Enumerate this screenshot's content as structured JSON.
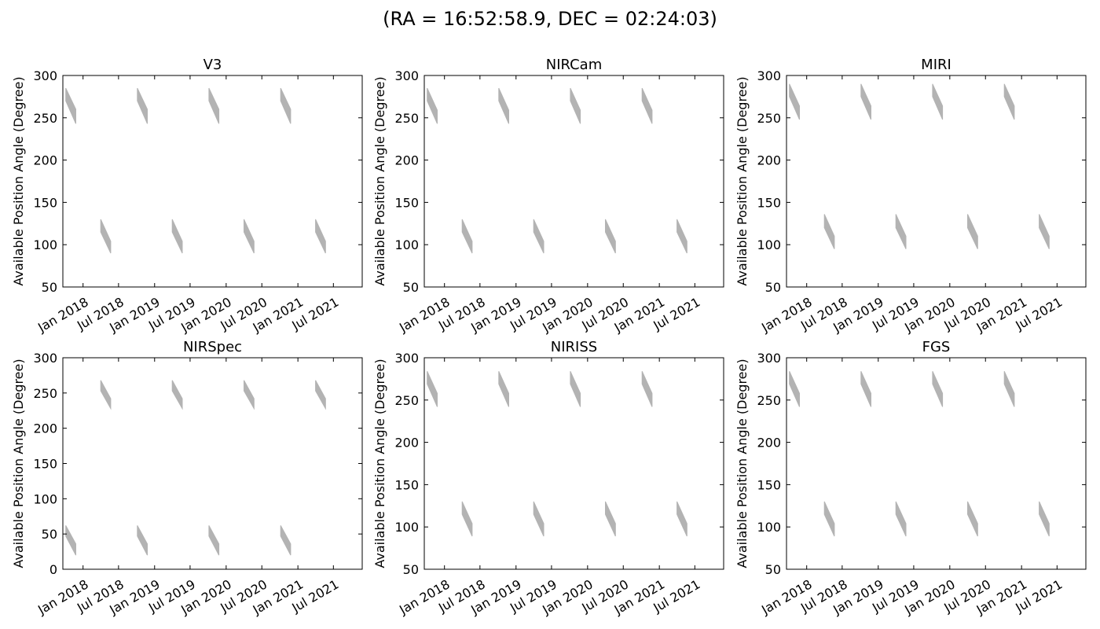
{
  "figure": {
    "title": "(RA = 16:52:58.9, DEC = 02:24:03)",
    "window_color": "#b3b3b3"
  },
  "chart_data": [
    {
      "type": "area",
      "title": "V3",
      "ylabel": "Available Position Angle (Degree)",
      "xlabel": "",
      "xlim": [
        "2017-09-20",
        "2021-11-25"
      ],
      "ylim": [
        50,
        300
      ],
      "yticks": [
        50,
        100,
        150,
        200,
        250,
        300
      ],
      "xticks": [
        "2018-01-01",
        "2018-07-01",
        "2019-01-01",
        "2019-07-01",
        "2020-01-01",
        "2020-07-01",
        "2021-01-01",
        "2021-07-01"
      ],
      "xticklabels": [
        "Jan 2018",
        "Jul 2018",
        "Jan 2019",
        "Jul 2019",
        "Jan 2020",
        "Jul 2020",
        "Jan 2021",
        "Jul 2021"
      ],
      "grid": false,
      "series": [
        {
          "windows": [
            {
              "start": "2017-10-05",
              "end": "2017-11-25",
              "upper_start": 285,
              "upper_end": 260,
              "lower_start": 270,
              "lower_end": 243
            },
            {
              "start": "2018-10-05",
              "end": "2018-11-25",
              "upper_start": 285,
              "upper_end": 260,
              "lower_start": 270,
              "lower_end": 243
            },
            {
              "start": "2019-10-05",
              "end": "2019-11-25",
              "upper_start": 285,
              "upper_end": 260,
              "lower_start": 270,
              "lower_end": 243
            },
            {
              "start": "2020-10-05",
              "end": "2020-11-25",
              "upper_start": 285,
              "upper_end": 260,
              "lower_start": 270,
              "lower_end": 243
            },
            {
              "start": "2018-04-01",
              "end": "2018-05-22",
              "upper_start": 130,
              "upper_end": 104,
              "lower_start": 115,
              "lower_end": 90
            },
            {
              "start": "2019-04-01",
              "end": "2019-05-22",
              "upper_start": 130,
              "upper_end": 104,
              "lower_start": 115,
              "lower_end": 90
            },
            {
              "start": "2020-04-01",
              "end": "2020-05-22",
              "upper_start": 130,
              "upper_end": 104,
              "lower_start": 115,
              "lower_end": 90
            },
            {
              "start": "2021-04-01",
              "end": "2021-05-22",
              "upper_start": 130,
              "upper_end": 104,
              "lower_start": 115,
              "lower_end": 90
            }
          ]
        }
      ]
    },
    {
      "type": "area",
      "title": "NIRCam",
      "ylabel": "Available Position Angle (Degree)",
      "xlabel": "",
      "xlim": [
        "2017-09-20",
        "2021-11-25"
      ],
      "ylim": [
        50,
        300
      ],
      "yticks": [
        50,
        100,
        150,
        200,
        250,
        300
      ],
      "xticks": [
        "2018-01-01",
        "2018-07-01",
        "2019-01-01",
        "2019-07-01",
        "2020-01-01",
        "2020-07-01",
        "2021-01-01",
        "2021-07-01"
      ],
      "xticklabels": [
        "Jan 2018",
        "Jul 2018",
        "Jan 2019",
        "Jul 2019",
        "Jan 2020",
        "Jul 2020",
        "Jan 2021",
        "Jul 2021"
      ],
      "grid": false,
      "series": [
        {
          "windows": [
            {
              "start": "2017-10-05",
              "end": "2017-11-25",
              "upper_start": 285,
              "upper_end": 259,
              "lower_start": 270,
              "lower_end": 243
            },
            {
              "start": "2018-10-05",
              "end": "2018-11-25",
              "upper_start": 285,
              "upper_end": 259,
              "lower_start": 270,
              "lower_end": 243
            },
            {
              "start": "2019-10-05",
              "end": "2019-11-25",
              "upper_start": 285,
              "upper_end": 259,
              "lower_start": 270,
              "lower_end": 243
            },
            {
              "start": "2020-10-05",
              "end": "2020-11-25",
              "upper_start": 285,
              "upper_end": 259,
              "lower_start": 270,
              "lower_end": 243
            },
            {
              "start": "2018-04-01",
              "end": "2018-05-22",
              "upper_start": 130,
              "upper_end": 104,
              "lower_start": 115,
              "lower_end": 90
            },
            {
              "start": "2019-04-01",
              "end": "2019-05-22",
              "upper_start": 130,
              "upper_end": 104,
              "lower_start": 115,
              "lower_end": 90
            },
            {
              "start": "2020-04-01",
              "end": "2020-05-22",
              "upper_start": 130,
              "upper_end": 104,
              "lower_start": 115,
              "lower_end": 90
            },
            {
              "start": "2021-04-01",
              "end": "2021-05-22",
              "upper_start": 130,
              "upper_end": 104,
              "lower_start": 115,
              "lower_end": 90
            }
          ]
        }
      ]
    },
    {
      "type": "area",
      "title": "MIRI",
      "ylabel": "Available Position Angle (Degree)",
      "xlabel": "",
      "xlim": [
        "2017-09-20",
        "2021-11-25"
      ],
      "ylim": [
        50,
        300
      ],
      "yticks": [
        50,
        100,
        150,
        200,
        250,
        300
      ],
      "xticks": [
        "2018-01-01",
        "2018-07-01",
        "2019-01-01",
        "2019-07-01",
        "2020-01-01",
        "2020-07-01",
        "2021-01-01",
        "2021-07-01"
      ],
      "xticklabels": [
        "Jan 2018",
        "Jul 2018",
        "Jan 2019",
        "Jul 2019",
        "Jan 2020",
        "Jul 2020",
        "Jan 2021",
        "Jul 2021"
      ],
      "grid": false,
      "series": [
        {
          "windows": [
            {
              "start": "2017-10-05",
              "end": "2017-11-25",
              "upper_start": 290,
              "upper_end": 264,
              "lower_start": 275,
              "lower_end": 248
            },
            {
              "start": "2018-10-05",
              "end": "2018-11-25",
              "upper_start": 290,
              "upper_end": 264,
              "lower_start": 275,
              "lower_end": 248
            },
            {
              "start": "2019-10-05",
              "end": "2019-11-25",
              "upper_start": 290,
              "upper_end": 264,
              "lower_start": 275,
              "lower_end": 248
            },
            {
              "start": "2020-10-05",
              "end": "2020-11-25",
              "upper_start": 290,
              "upper_end": 264,
              "lower_start": 275,
              "lower_end": 248
            },
            {
              "start": "2018-04-01",
              "end": "2018-05-22",
              "upper_start": 136,
              "upper_end": 110,
              "lower_start": 120,
              "lower_end": 95
            },
            {
              "start": "2019-04-01",
              "end": "2019-05-22",
              "upper_start": 136,
              "upper_end": 110,
              "lower_start": 120,
              "lower_end": 95
            },
            {
              "start": "2020-04-01",
              "end": "2020-05-22",
              "upper_start": 136,
              "upper_end": 110,
              "lower_start": 120,
              "lower_end": 95
            },
            {
              "start": "2021-04-01",
              "end": "2021-05-22",
              "upper_start": 136,
              "upper_end": 110,
              "lower_start": 120,
              "lower_end": 95
            }
          ]
        }
      ]
    },
    {
      "type": "area",
      "title": "NIRSpec",
      "ylabel": "Available Position Angle (Degree)",
      "xlabel": "",
      "xlim": [
        "2017-09-20",
        "2021-11-25"
      ],
      "ylim": [
        0,
        300
      ],
      "yticks": [
        0,
        50,
        100,
        150,
        200,
        250,
        300
      ],
      "xticks": [
        "2018-01-01",
        "2018-07-01",
        "2019-01-01",
        "2019-07-01",
        "2020-01-01",
        "2020-07-01",
        "2021-01-01",
        "2021-07-01"
      ],
      "xticklabels": [
        "Jan 2018",
        "Jul 2018",
        "Jan 2019",
        "Jul 2019",
        "Jan 2020",
        "Jul 2020",
        "Jan 2021",
        "Jul 2021"
      ],
      "grid": false,
      "series": [
        {
          "windows": [
            {
              "start": "2017-10-05",
              "end": "2017-11-25",
              "upper_start": 62,
              "upper_end": 36,
              "lower_start": 47,
              "lower_end": 20
            },
            {
              "start": "2018-10-05",
              "end": "2018-11-25",
              "upper_start": 62,
              "upper_end": 36,
              "lower_start": 47,
              "lower_end": 20
            },
            {
              "start": "2019-10-05",
              "end": "2019-11-25",
              "upper_start": 62,
              "upper_end": 36,
              "lower_start": 47,
              "lower_end": 20
            },
            {
              "start": "2020-10-05",
              "end": "2020-11-25",
              "upper_start": 62,
              "upper_end": 36,
              "lower_start": 47,
              "lower_end": 20
            },
            {
              "start": "2018-04-01",
              "end": "2018-05-22",
              "upper_start": 268,
              "upper_end": 242,
              "lower_start": 253,
              "lower_end": 228
            },
            {
              "start": "2019-04-01",
              "end": "2019-05-22",
              "upper_start": 268,
              "upper_end": 242,
              "lower_start": 253,
              "lower_end": 228
            },
            {
              "start": "2020-04-01",
              "end": "2020-05-22",
              "upper_start": 268,
              "upper_end": 242,
              "lower_start": 253,
              "lower_end": 228
            },
            {
              "start": "2021-04-01",
              "end": "2021-05-22",
              "upper_start": 268,
              "upper_end": 242,
              "lower_start": 253,
              "lower_end": 228
            }
          ]
        }
      ]
    },
    {
      "type": "area",
      "title": "NIRISS",
      "ylabel": "Available Position Angle (Degree)",
      "xlabel": "",
      "xlim": [
        "2017-09-20",
        "2021-11-25"
      ],
      "ylim": [
        50,
        300
      ],
      "yticks": [
        50,
        100,
        150,
        200,
        250,
        300
      ],
      "xticks": [
        "2018-01-01",
        "2018-07-01",
        "2019-01-01",
        "2019-07-01",
        "2020-01-01",
        "2020-07-01",
        "2021-01-01",
        "2021-07-01"
      ],
      "xticklabels": [
        "Jan 2018",
        "Jul 2018",
        "Jan 2019",
        "Jul 2019",
        "Jan 2020",
        "Jul 2020",
        "Jan 2021",
        "Jul 2021"
      ],
      "grid": false,
      "series": [
        {
          "windows": [
            {
              "start": "2017-10-05",
              "end": "2017-11-25",
              "upper_start": 284,
              "upper_end": 258,
              "lower_start": 269,
              "lower_end": 242
            },
            {
              "start": "2018-10-05",
              "end": "2018-11-25",
              "upper_start": 284,
              "upper_end": 258,
              "lower_start": 269,
              "lower_end": 242
            },
            {
              "start": "2019-10-05",
              "end": "2019-11-25",
              "upper_start": 284,
              "upper_end": 258,
              "lower_start": 269,
              "lower_end": 242
            },
            {
              "start": "2020-10-05",
              "end": "2020-11-25",
              "upper_start": 284,
              "upper_end": 258,
              "lower_start": 269,
              "lower_end": 242
            },
            {
              "start": "2018-04-01",
              "end": "2018-05-22",
              "upper_start": 130,
              "upper_end": 104,
              "lower_start": 115,
              "lower_end": 89
            },
            {
              "start": "2019-04-01",
              "end": "2019-05-22",
              "upper_start": 130,
              "upper_end": 104,
              "lower_start": 115,
              "lower_end": 89
            },
            {
              "start": "2020-04-01",
              "end": "2020-05-22",
              "upper_start": 130,
              "upper_end": 104,
              "lower_start": 115,
              "lower_end": 89
            },
            {
              "start": "2021-04-01",
              "end": "2021-05-22",
              "upper_start": 130,
              "upper_end": 104,
              "lower_start": 115,
              "lower_end": 89
            }
          ]
        }
      ]
    },
    {
      "type": "area",
      "title": "FGS",
      "ylabel": "Available Position Angle (Degree)",
      "xlabel": "",
      "xlim": [
        "2017-09-20",
        "2021-11-25"
      ],
      "ylim": [
        50,
        300
      ],
      "yticks": [
        50,
        100,
        150,
        200,
        250,
        300
      ],
      "xticks": [
        "2018-01-01",
        "2018-07-01",
        "2019-01-01",
        "2019-07-01",
        "2020-01-01",
        "2020-07-01",
        "2021-01-01",
        "2021-07-01"
      ],
      "xticklabels": [
        "Jan 2018",
        "Jul 2018",
        "Jan 2019",
        "Jul 2019",
        "Jan 2020",
        "Jul 2020",
        "Jan 2021",
        "Jul 2021"
      ],
      "grid": false,
      "series": [
        {
          "windows": [
            {
              "start": "2017-10-05",
              "end": "2017-11-25",
              "upper_start": 284,
              "upper_end": 258,
              "lower_start": 269,
              "lower_end": 242
            },
            {
              "start": "2018-10-05",
              "end": "2018-11-25",
              "upper_start": 284,
              "upper_end": 258,
              "lower_start": 269,
              "lower_end": 242
            },
            {
              "start": "2019-10-05",
              "end": "2019-11-25",
              "upper_start": 284,
              "upper_end": 258,
              "lower_start": 269,
              "lower_end": 242
            },
            {
              "start": "2020-10-05",
              "end": "2020-11-25",
              "upper_start": 284,
              "upper_end": 258,
              "lower_start": 269,
              "lower_end": 242
            },
            {
              "start": "2018-04-01",
              "end": "2018-05-22",
              "upper_start": 130,
              "upper_end": 104,
              "lower_start": 115,
              "lower_end": 89
            },
            {
              "start": "2019-04-01",
              "end": "2019-05-22",
              "upper_start": 130,
              "upper_end": 104,
              "lower_start": 115,
              "lower_end": 89
            },
            {
              "start": "2020-04-01",
              "end": "2020-05-22",
              "upper_start": 130,
              "upper_end": 104,
              "lower_start": 115,
              "lower_end": 89
            },
            {
              "start": "2021-04-01",
              "end": "2021-05-22",
              "upper_start": 130,
              "upper_end": 104,
              "lower_start": 115,
              "lower_end": 89
            }
          ]
        }
      ]
    }
  ]
}
